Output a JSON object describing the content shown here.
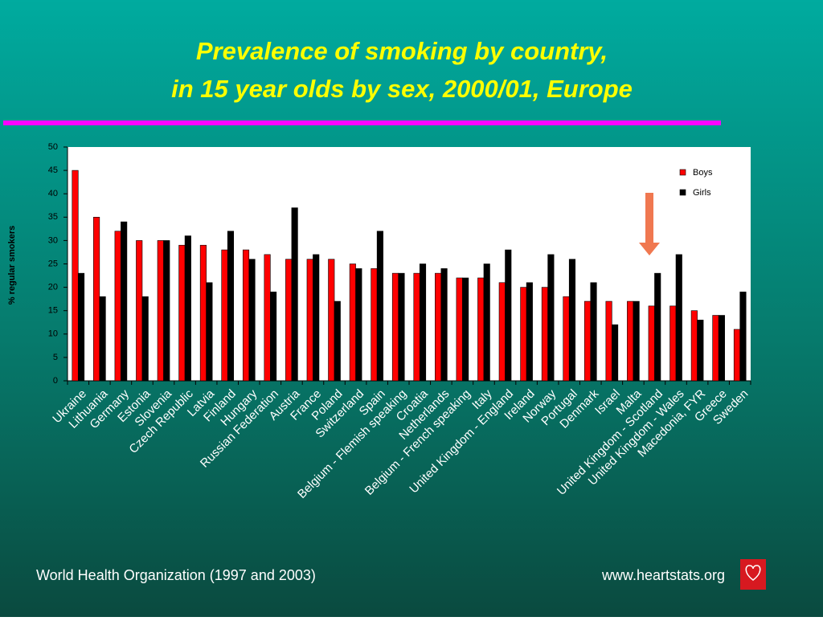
{
  "chart_data": {
    "type": "bar",
    "title": [
      "Prevalence of smoking by country,",
      "in 15 year olds by sex, 2000/01, Europe"
    ],
    "y_label": "% regular smokers",
    "categories": [
      "Ukraine",
      "Lithuania",
      "Germany",
      "Estonia",
      "Slovenia",
      "Czech Republic",
      "Latvia",
      "Finland",
      "Hungary",
      "Russian Federation",
      "Austria",
      "France",
      "Poland",
      "Switzerland",
      "Spain",
      "Belgium - Flemish speaking",
      "Croatia",
      "Netherlands",
      "Belgium - French speaking",
      "Italy",
      "United Kingdom - England",
      "Ireland",
      "Norway",
      "Portugal",
      "Denmark",
      "Israel",
      "Malta",
      "United Kingdom - Scotland",
      "United Kingdom - Wales",
      "Macedonia, FYR",
      "Greece",
      "Sweden"
    ],
    "series": [
      {
        "name": "Boys",
        "color": "#ff0000",
        "values": [
          45,
          35,
          32,
          30,
          30,
          29,
          29,
          28,
          28,
          27,
          26,
          26,
          26,
          25,
          24,
          23,
          23,
          23,
          22,
          22,
          21,
          20,
          20,
          18,
          17,
          17,
          17,
          16,
          16,
          15,
          14,
          11
        ]
      },
      {
        "name": "Girls",
        "color": "#000000",
        "values": [
          23,
          18,
          34,
          18,
          30,
          31,
          21,
          32,
          26,
          19,
          37,
          27,
          17,
          24,
          32,
          23,
          25,
          24,
          22,
          25,
          28,
          21,
          27,
          26,
          21,
          12,
          17,
          23,
          27,
          13,
          14,
          19
        ]
      }
    ],
    "ylim": [
      0,
      50
    ],
    "yticks": [
      0,
      5,
      10,
      15,
      20,
      25,
      30,
      35,
      40,
      45,
      50
    ],
    "legend": "upper right",
    "source": "World Health Organization (1997 and 2003)",
    "url": "www.heartstats.org"
  }
}
